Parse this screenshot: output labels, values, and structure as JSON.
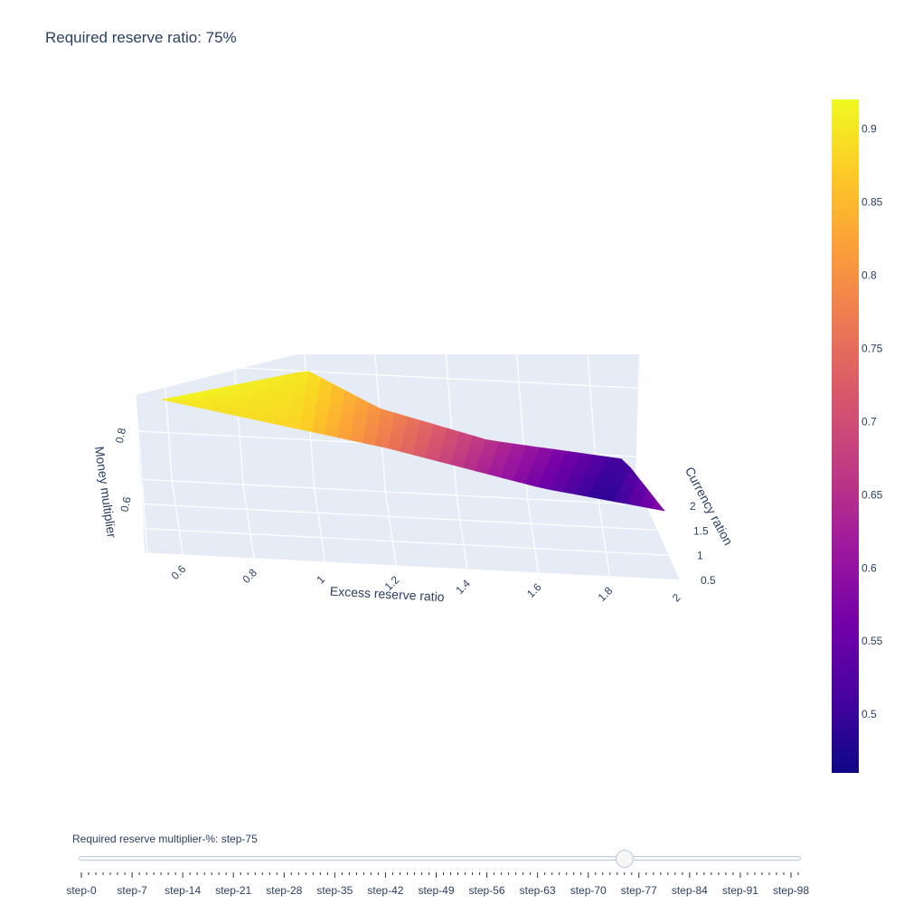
{
  "title": "Required reserve ratio: 75%",
  "chart_data": {
    "type": "surface",
    "z_formula_note": "",
    "x_axis": {
      "label": "Excess reserve ratio",
      "ticks": [
        "0.6",
        "0.8",
        "1",
        "1.2",
        "1.4",
        "1.6",
        "1.8",
        "2"
      ],
      "range": [
        0.5,
        2
      ]
    },
    "y_axis": {
      "label": "Currency ration",
      "ticks": [
        "0.5",
        "1",
        "1.5",
        "2"
      ],
      "range": [
        0.5,
        2
      ]
    },
    "z_axis": {
      "label": "Money multiplier",
      "ticks": [
        "0.6",
        "0.8"
      ],
      "range": [
        0.46,
        0.92
      ]
    },
    "colorbar": {
      "ticks": [
        "0.5",
        "0.55",
        "0.6",
        "0.65",
        "0.7",
        "0.75",
        "0.8",
        "0.85",
        "0.9"
      ],
      "min": 0.46,
      "max": 0.92,
      "colorscale": "plasma"
    },
    "grid": true
  },
  "slider": {
    "label": "Required reserve multiplier-%: step-75",
    "active_step": 75,
    "steps": [
      "step-0",
      "step-7",
      "step-14",
      "step-21",
      "step-28",
      "step-35",
      "step-42",
      "step-49",
      "step-56",
      "step-63",
      "step-70",
      "step-77",
      "step-84",
      "step-91",
      "step-98"
    ]
  }
}
